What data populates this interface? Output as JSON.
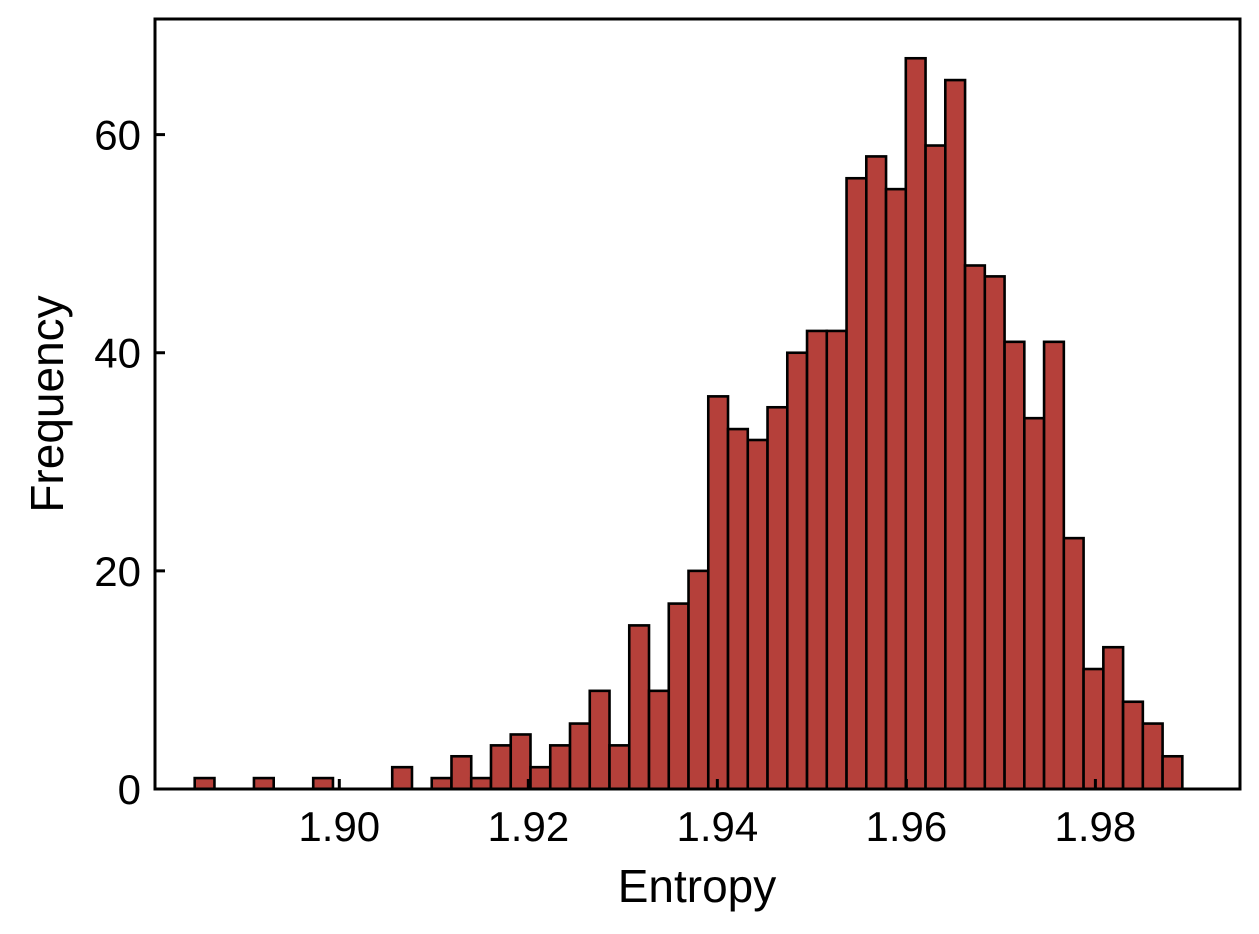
{
  "chart_data": {
    "type": "bar",
    "title": "",
    "xlabel": "Entropy",
    "ylabel": "Frequency",
    "xlim": [
      1.8805,
      1.9953
    ],
    "ylim": [
      0,
      70.6
    ],
    "x_ticks": [
      1.9,
      1.92,
      1.94,
      1.96,
      1.98
    ],
    "x_tick_labels": [
      "1.90",
      "1.92",
      "1.94",
      "1.96",
      "1.98"
    ],
    "y_ticks": [
      0,
      20,
      40,
      60
    ],
    "y_tick_labels": [
      "0",
      "20",
      "40",
      "60"
    ],
    "bin_start": 1.8847,
    "bin_width": 0.00209,
    "counts": [
      1,
      0,
      0,
      1,
      0,
      0,
      1,
      0,
      0,
      0,
      2,
      0,
      1,
      3,
      1,
      4,
      5,
      2,
      4,
      6,
      9,
      4,
      15,
      9,
      17,
      20,
      36,
      33,
      32,
      35,
      40,
      42,
      42,
      56,
      58,
      55,
      67,
      59,
      65,
      48,
      47,
      41,
      34,
      41,
      23,
      11,
      13,
      8,
      6,
      3
    ],
    "bar_color": "#b5403a",
    "edge_color": "#000000",
    "grid": false,
    "legend": "none"
  }
}
